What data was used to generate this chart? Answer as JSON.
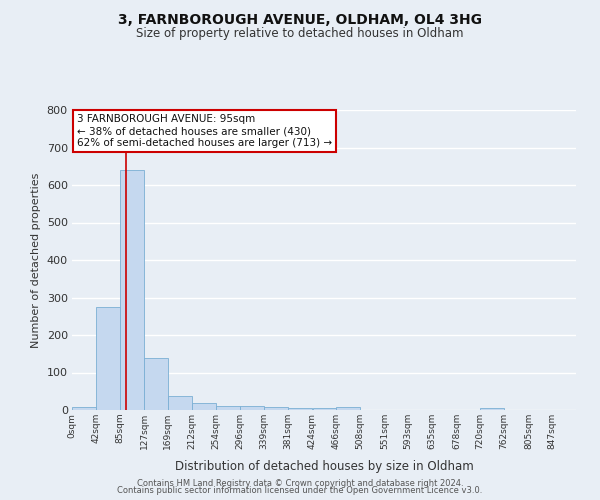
{
  "title": "3, FARNBOROUGH AVENUE, OLDHAM, OL4 3HG",
  "subtitle": "Size of property relative to detached houses in Oldham",
  "xlabel": "Distribution of detached houses by size in Oldham",
  "ylabel": "Number of detached properties",
  "bin_labels": [
    "0sqm",
    "42sqm",
    "85sqm",
    "127sqm",
    "169sqm",
    "212sqm",
    "254sqm",
    "296sqm",
    "339sqm",
    "381sqm",
    "424sqm",
    "466sqm",
    "508sqm",
    "551sqm",
    "593sqm",
    "635sqm",
    "678sqm",
    "720sqm",
    "762sqm",
    "805sqm",
    "847sqm"
  ],
  "bin_edges": [
    0,
    42,
    85,
    127,
    169,
    212,
    254,
    296,
    339,
    381,
    424,
    466,
    508,
    551,
    593,
    635,
    678,
    720,
    762,
    805,
    847
  ],
  "bar_heights": [
    8,
    275,
    640,
    140,
    37,
    18,
    12,
    10,
    8,
    6,
    5,
    7,
    0,
    0,
    0,
    0,
    0,
    5,
    0,
    0,
    0
  ],
  "bar_color": "#c5d8ef",
  "bar_edgecolor": "#7aafd4",
  "property_size": 95,
  "vline_color": "#cc0000",
  "ylim": [
    0,
    800
  ],
  "yticks": [
    0,
    100,
    200,
    300,
    400,
    500,
    600,
    700,
    800
  ],
  "annotation_line1": "3 FARNBOROUGH AVENUE: 95sqm",
  "annotation_line2": "← 38% of detached houses are smaller (430)",
  "annotation_line3": "62% of semi-detached houses are larger (713) →",
  "annotation_box_color": "#cc0000",
  "footer_line1": "Contains HM Land Registry data © Crown copyright and database right 2024.",
  "footer_line2": "Contains public sector information licensed under the Open Government Licence v3.0.",
  "background_color": "#e8eef5",
  "grid_color": "#ffffff"
}
